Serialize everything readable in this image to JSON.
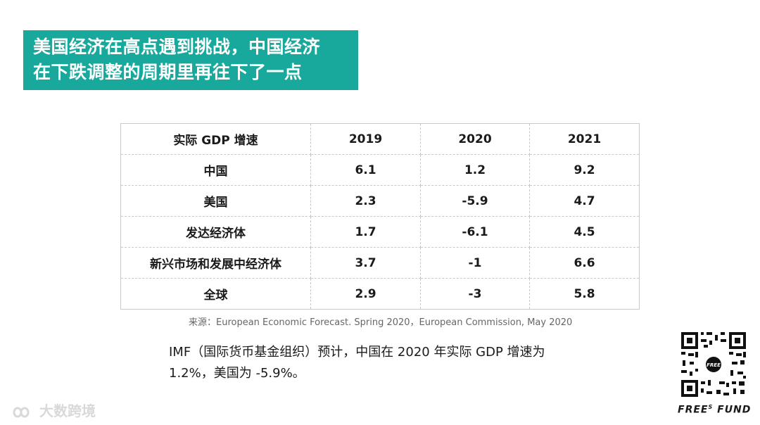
{
  "title": {
    "line1": "美国经济在高点遇到挑战，中国经济",
    "line2": "在下跌调整的周期里再往下了一点"
  },
  "table": {
    "headers": [
      "实际 GDP 增速",
      "2019",
      "2020",
      "2021"
    ],
    "rows": [
      [
        "中国",
        "6.1",
        "1.2",
        "9.2"
      ],
      [
        "美国",
        "2.3",
        "-5.9",
        "4.7"
      ],
      [
        "发达经济体",
        "1.7",
        "-6.1",
        "4.5"
      ],
      [
        "新兴市场和发展中经济体",
        "3.7",
        "-1",
        "6.6"
      ],
      [
        "全球",
        "2.9",
        "-3",
        "5.8"
      ]
    ]
  },
  "source": "来源：European Economic Forecast. Spring 2020，European Commission, May 2020",
  "summary": {
    "line1": "IMF（国际货币基金组织）预计，中国在 2020 年实际 GDP 增速为",
    "line2": "1.2%，美国为 -5.9%。"
  },
  "watermark": {
    "text": "大数跨境",
    "logo_icon": "infinity-logo-icon"
  },
  "brand": {
    "name": "FREE",
    "superscript": "S",
    "suffix": "FUND"
  },
  "colors": {
    "accent": "#19a89c"
  }
}
